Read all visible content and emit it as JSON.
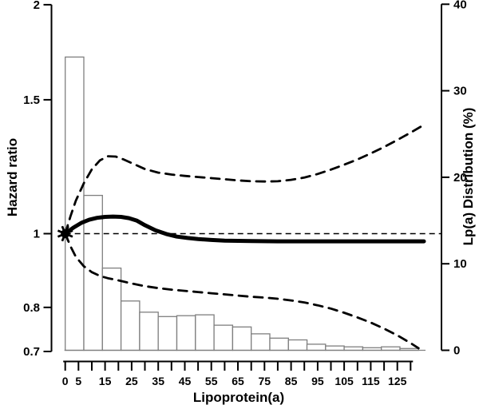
{
  "chart_data": {
    "type": "line",
    "subtype": "spline-hazard-ratio-with-distribution-histogram",
    "title": "",
    "xlabel": "Lipoprotein(a)",
    "ylabel_left": "Hazard ratio",
    "ylabel_right": "Lp(a) Distribution (%)",
    "x_axis": {
      "min": 0,
      "max": 130,
      "tick_step": 5,
      "labeled_ticks": [
        0,
        5,
        15,
        25,
        35,
        45,
        55,
        65,
        75,
        85,
        95,
        105,
        115,
        125
      ]
    },
    "y_left_axis": {
      "scale": "log",
      "range": [
        0.7,
        2
      ],
      "tick_values": [
        2,
        1.5,
        1,
        0.8,
        0.7
      ],
      "tick_labels": [
        "2",
        "1.5",
        "1",
        "0.8",
        "0.7"
      ]
    },
    "y_right_axis": {
      "scale": "linear",
      "range": [
        0,
        40
      ],
      "tick_values": [
        40,
        30,
        20,
        10,
        0
      ],
      "tick_labels": [
        "40",
        "30",
        "20",
        "10",
        "0"
      ]
    },
    "reference_line": {
      "hazard_ratio": 1.0,
      "style": "dashed"
    },
    "marker": {
      "x": 0,
      "hazard_ratio": 1.0,
      "shape": "filled-star"
    },
    "histogram": {
      "axis": "right",
      "bin_start": 0,
      "bin_width": 7,
      "percentages": [
        33.9,
        17.9,
        9.5,
        5.7,
        4.4,
        3.9,
        4.0,
        4.1,
        2.9,
        2.7,
        1.9,
        1.4,
        1.2,
        0.7,
        0.5,
        0.4,
        0.3,
        0.4,
        0.2
      ]
    },
    "series": [
      {
        "name": "hazard_ratio",
        "label": "Hazard ratio (point estimate)",
        "line": "solid-thick",
        "points": [
          [
            0,
            1.0
          ],
          [
            3,
            1.018
          ],
          [
            6,
            1.033
          ],
          [
            9,
            1.043
          ],
          [
            12,
            1.049
          ],
          [
            15,
            1.052
          ],
          [
            18,
            1.053
          ],
          [
            21,
            1.052
          ],
          [
            24,
            1.048
          ],
          [
            27,
            1.04
          ],
          [
            30,
            1.026
          ],
          [
            34,
            1.01
          ],
          [
            38,
            0.999
          ],
          [
            42,
            0.991
          ],
          [
            46,
            0.987
          ],
          [
            50,
            0.984
          ],
          [
            55,
            0.981
          ],
          [
            60,
            0.979
          ],
          [
            70,
            0.978
          ],
          [
            80,
            0.977
          ],
          [
            90,
            0.977
          ],
          [
            100,
            0.977
          ],
          [
            110,
            0.977
          ],
          [
            120,
            0.977
          ],
          [
            130,
            0.977
          ],
          [
            135,
            0.977
          ]
        ]
      },
      {
        "name": "upper_ci",
        "label": "Upper 95% confidence band",
        "line": "dashed",
        "points": [
          [
            0,
            1.0
          ],
          [
            2,
            1.055
          ],
          [
            4,
            1.105
          ],
          [
            7,
            1.165
          ],
          [
            10,
            1.215
          ],
          [
            13,
            1.248
          ],
          [
            16,
            1.264
          ],
          [
            19,
            1.263
          ],
          [
            22,
            1.252
          ],
          [
            26,
            1.234
          ],
          [
            30,
            1.216
          ],
          [
            35,
            1.203
          ],
          [
            40,
            1.196
          ],
          [
            45,
            1.191
          ],
          [
            50,
            1.187
          ],
          [
            55,
            1.183
          ],
          [
            60,
            1.179
          ],
          [
            65,
            1.175
          ],
          [
            70,
            1.172
          ],
          [
            75,
            1.171
          ],
          [
            80,
            1.172
          ],
          [
            85,
            1.177
          ],
          [
            90,
            1.185
          ],
          [
            95,
            1.198
          ],
          [
            100,
            1.214
          ],
          [
            105,
            1.232
          ],
          [
            110,
            1.252
          ],
          [
            115,
            1.275
          ],
          [
            120,
            1.3
          ],
          [
            125,
            1.328
          ],
          [
            130,
            1.358
          ],
          [
            135,
            1.39
          ]
        ]
      },
      {
        "name": "lower_ci",
        "label": "Lower 95% confidence band",
        "line": "dashed",
        "points": [
          [
            0,
            1.0
          ],
          [
            2,
            0.962
          ],
          [
            4,
            0.932
          ],
          [
            7,
            0.906
          ],
          [
            10,
            0.89
          ],
          [
            13,
            0.88
          ],
          [
            16,
            0.874
          ],
          [
            20,
            0.868
          ],
          [
            25,
            0.86
          ],
          [
            30,
            0.853
          ],
          [
            35,
            0.848
          ],
          [
            40,
            0.844
          ],
          [
            45,
            0.841
          ],
          [
            50,
            0.838
          ],
          [
            55,
            0.835
          ],
          [
            60,
            0.832
          ],
          [
            65,
            0.829
          ],
          [
            70,
            0.826
          ],
          [
            75,
            0.824
          ],
          [
            80,
            0.821
          ],
          [
            85,
            0.817
          ],
          [
            90,
            0.812
          ],
          [
            95,
            0.805
          ],
          [
            100,
            0.797
          ],
          [
            105,
            0.787
          ],
          [
            110,
            0.776
          ],
          [
            115,
            0.764
          ],
          [
            120,
            0.75
          ],
          [
            125,
            0.735
          ],
          [
            130,
            0.718
          ],
          [
            133,
            0.707
          ]
        ]
      }
    ],
    "colors": {
      "line": "#000000",
      "bar_stroke": "#7f7f7f",
      "bar_fill": "#ffffff",
      "background": "#ffffff",
      "text": "#000000"
    },
    "legend": "none",
    "grid": "off"
  }
}
